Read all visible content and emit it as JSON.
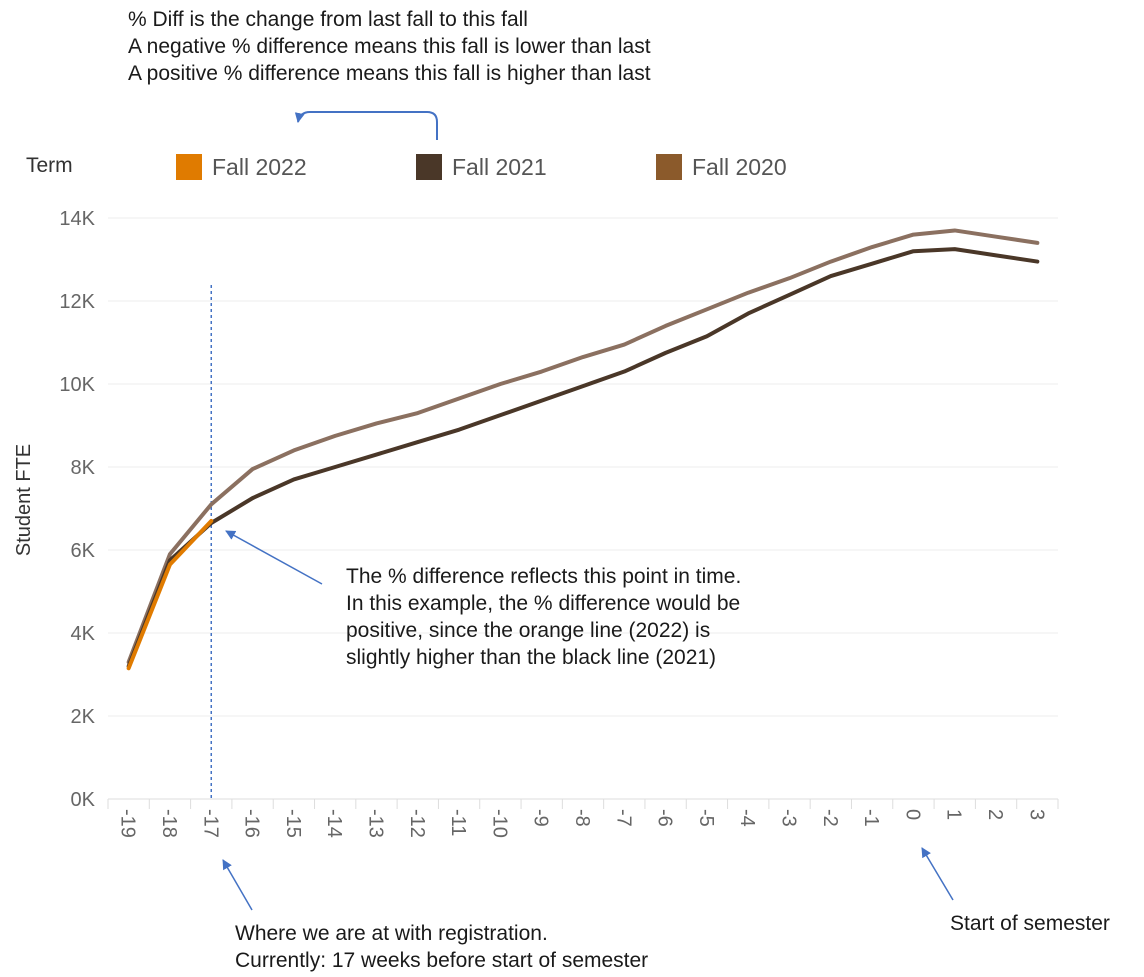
{
  "notes": {
    "top": [
      "% Diff is the change from last fall to this fall",
      "A negative % difference means this fall is lower than last",
      "A positive % difference means this fall is higher than last"
    ],
    "point": [
      "The % difference reflects this point in time.",
      "In this example, the % difference would be",
      "positive, since the orange line (2022) is",
      "slightly higher than the black line (2021)"
    ],
    "registration": [
      "Where we are at with registration.",
      "Currently: 17 weeks before start of semester"
    ],
    "start": "Start of semester"
  },
  "legend": {
    "title": "Term",
    "items": [
      {
        "label": "Fall 2022",
        "color": "#E07B00"
      },
      {
        "label": "Fall 2021",
        "color": "#4A3728"
      },
      {
        "label": "Fall 2020",
        "color": "#8B5A2B"
      }
    ]
  },
  "chart_data": {
    "type": "line",
    "title": "",
    "xlabel": "",
    "ylabel": "Student FTE",
    "x": [
      -19,
      -18,
      -17,
      -16,
      -15,
      -14,
      -13,
      -12,
      -11,
      -10,
      -9,
      -8,
      -7,
      -6,
      -5,
      -4,
      -3,
      -2,
      -1,
      0,
      1,
      2,
      3
    ],
    "x_tick_labels": [
      "-19",
      "-18",
      "-17",
      "-16",
      "-15",
      "-14",
      "-13",
      "-12",
      "-11",
      "-10",
      "-9",
      "-8",
      "-7",
      "-6",
      "-5",
      "-4",
      "-3",
      "-2",
      "-1",
      "0",
      "1",
      "2",
      "3"
    ],
    "ylim": [
      0,
      14000
    ],
    "y_ticks": [
      0,
      2000,
      4000,
      6000,
      8000,
      10000,
      12000,
      14000
    ],
    "y_tick_labels": [
      "0K",
      "2K",
      "4K",
      "6K",
      "8K",
      "10K",
      "12K",
      "14K"
    ],
    "grid": true,
    "legend_position": "top",
    "series": [
      {
        "name": "Fall 2020",
        "color": "#8B7060",
        "values": [
          3300,
          5900,
          7100,
          7950,
          8400,
          8750,
          9050,
          9300,
          9650,
          10000,
          10300,
          10650,
          10950,
          11400,
          11800,
          12200,
          12550,
          12950,
          13300,
          13600,
          13700,
          13550,
          13400
        ]
      },
      {
        "name": "Fall 2021",
        "color": "#4A3728",
        "values": [
          3200,
          5750,
          6650,
          7250,
          7700,
          8000,
          8300,
          8600,
          8900,
          9250,
          9600,
          9950,
          10300,
          10750,
          11150,
          11700,
          12150,
          12600,
          12900,
          13200,
          13250,
          13100,
          12950
        ]
      },
      {
        "name": "Fall 2022",
        "color": "#E07B00",
        "values": [
          3150,
          5650,
          6700,
          null,
          null,
          null,
          null,
          null,
          null,
          null,
          null,
          null,
          null,
          null,
          null,
          null,
          null,
          null,
          null,
          null,
          null,
          null,
          null
        ]
      }
    ],
    "reference_line": {
      "x": -17,
      "color": "#4472C4"
    }
  }
}
